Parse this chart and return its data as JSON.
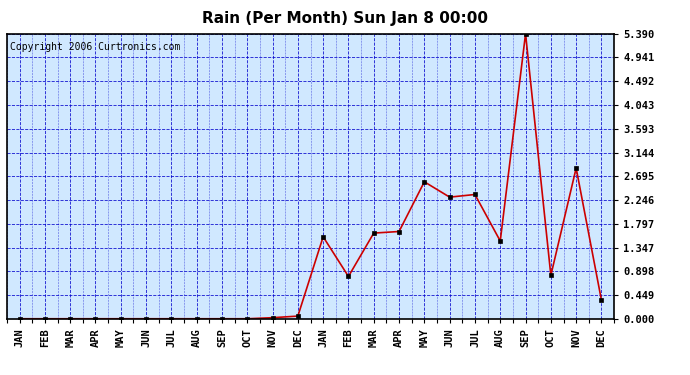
{
  "title": "Rain (Per Month) Sun Jan 8 00:00",
  "copyright": "Copyright 2006 Curtronics.com",
  "x_labels": [
    "JAN",
    "FEB",
    "MAR",
    "APR",
    "MAY",
    "JUN",
    "JUL",
    "AUG",
    "SEP",
    "OCT",
    "NOV",
    "DEC",
    "JAN",
    "FEB",
    "MAR",
    "APR",
    "MAY",
    "JUN",
    "JUL",
    "AUG",
    "SEP",
    "OCT",
    "NOV",
    "DEC"
  ],
  "y_values": [
    0.0,
    0.0,
    0.0,
    0.0,
    0.0,
    0.0,
    0.0,
    0.0,
    0.0,
    0.0,
    0.02,
    0.05,
    1.55,
    0.8,
    1.62,
    1.65,
    2.59,
    2.3,
    2.35,
    1.47,
    5.39,
    0.82,
    2.85,
    0.35
  ],
  "yticks": [
    0.0,
    0.449,
    0.898,
    1.347,
    1.797,
    2.246,
    2.695,
    3.144,
    3.593,
    4.043,
    4.492,
    4.941,
    5.39
  ],
  "ymax": 5.39,
  "line_color": "#cc0000",
  "marker_color": "#000000",
  "bg_color": "#d0e8ff",
  "grid_color": "#0000cc",
  "border_color": "#000000",
  "title_fontsize": 11,
  "copyright_fontsize": 7,
  "tick_fontsize": 7.5
}
